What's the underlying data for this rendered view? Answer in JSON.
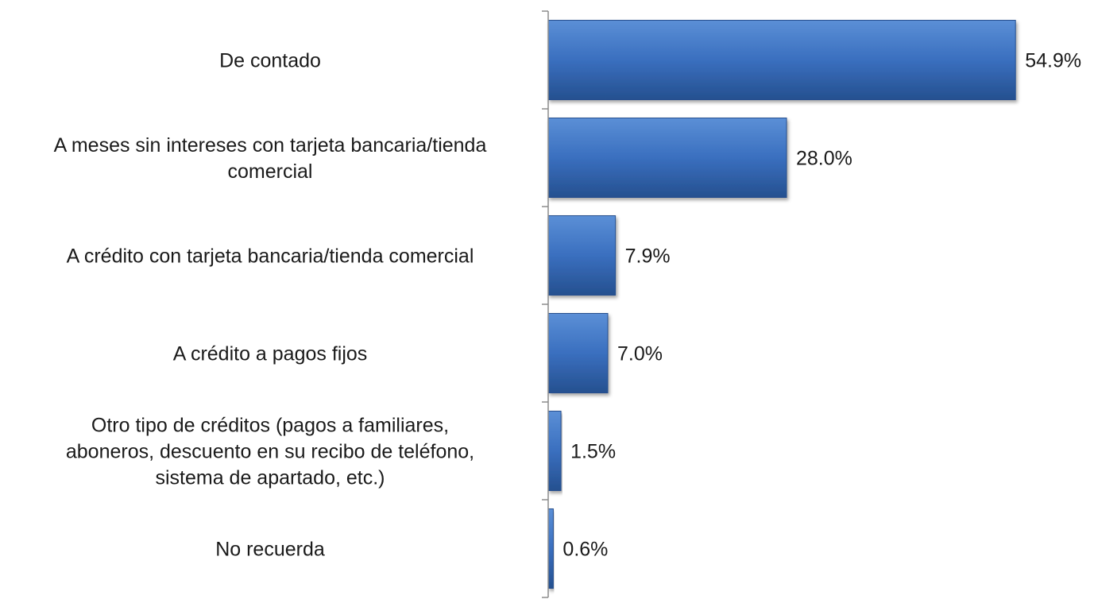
{
  "chart_data": {
    "type": "bar",
    "orientation": "horizontal",
    "categories": [
      [
        "De contado"
      ],
      [
        "A meses sin intereses con tarjeta bancaria/tienda",
        "comercial"
      ],
      [
        "A crédito con tarjeta bancaria/tienda comercial"
      ],
      [
        "A crédito a pagos fijos"
      ],
      [
        "Otro tipo de créditos (pagos a familiares,",
        "aboneros, descuento en su recibo de teléfono,",
        "sistema de apartado, etc.)"
      ],
      [
        "No recuerda"
      ]
    ],
    "values": [
      54.9,
      28.0,
      7.9,
      7.0,
      1.5,
      0.6
    ],
    "value_labels": [
      "54.9%",
      "28.0%",
      "7.9%",
      "7.0%",
      "1.5%",
      "0.6%"
    ],
    "xlim": [
      0,
      56
    ],
    "grid": false,
    "legend": "none",
    "colors": {
      "bar_light": "#5b8fd6",
      "bar_mid": "#3a6fbf",
      "bar_dark": "#25508f",
      "axis": "#8c8c8c"
    }
  }
}
